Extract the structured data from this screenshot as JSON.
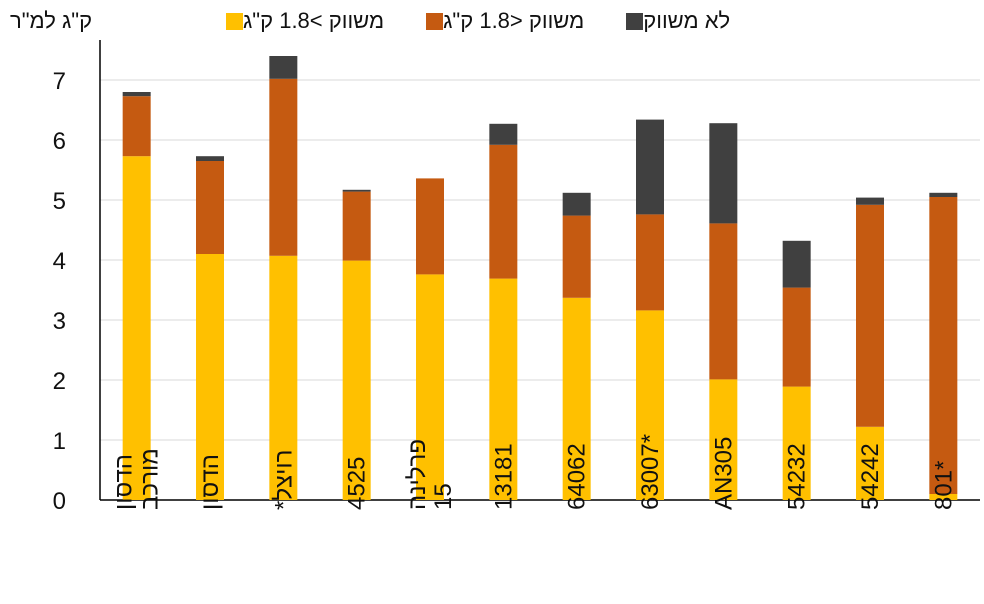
{
  "chart_data": {
    "type": "bar",
    "stacked": true,
    "ylabel": "ק\"ג למ\"ר",
    "ylim": [
      0,
      7.5
    ],
    "yticks": [
      0,
      1,
      2,
      3,
      4,
      5,
      6,
      7
    ],
    "grid": true,
    "legend_position": "top",
    "categories": [
      "הדסון מורכב",
      "הדסון",
      "רויצל*",
      "4525",
      "פרלינה 15",
      "13181",
      "64062",
      "63007*",
      "AN305",
      "54232",
      "54242",
      "801*"
    ],
    "series": [
      {
        "name": "משווק >1.8 ק\"ג",
        "color": "#FFC000",
        "values": [
          5.73,
          4.1,
          4.07,
          3.99,
          3.76,
          3.69,
          3.37,
          3.16,
          2.01,
          1.89,
          1.22,
          0.1
        ]
      },
      {
        "name": "משווק <1.8 ק\"ג",
        "color": "#C55A11",
        "values": [
          1.0,
          1.55,
          2.95,
          1.15,
          1.6,
          2.23,
          1.37,
          1.6,
          2.6,
          1.65,
          3.7,
          4.95
        ]
      },
      {
        "name": "לא משווק",
        "color": "#404040",
        "values": [
          0.07,
          0.08,
          0.38,
          0.03,
          0.0,
          0.35,
          0.38,
          1.58,
          1.67,
          0.78,
          0.12,
          0.07
        ]
      }
    ]
  },
  "legend": {
    "items": [
      {
        "label": "משווק >1.8 ק\"ג",
        "color": "#FFC000"
      },
      {
        "label": "משווק <1.8 ק\"ג",
        "color": "#C55A11"
      },
      {
        "label": "לא משווק",
        "color": "#404040"
      }
    ]
  },
  "axis": {
    "y_title": "ק\"ג למ\"ר"
  }
}
